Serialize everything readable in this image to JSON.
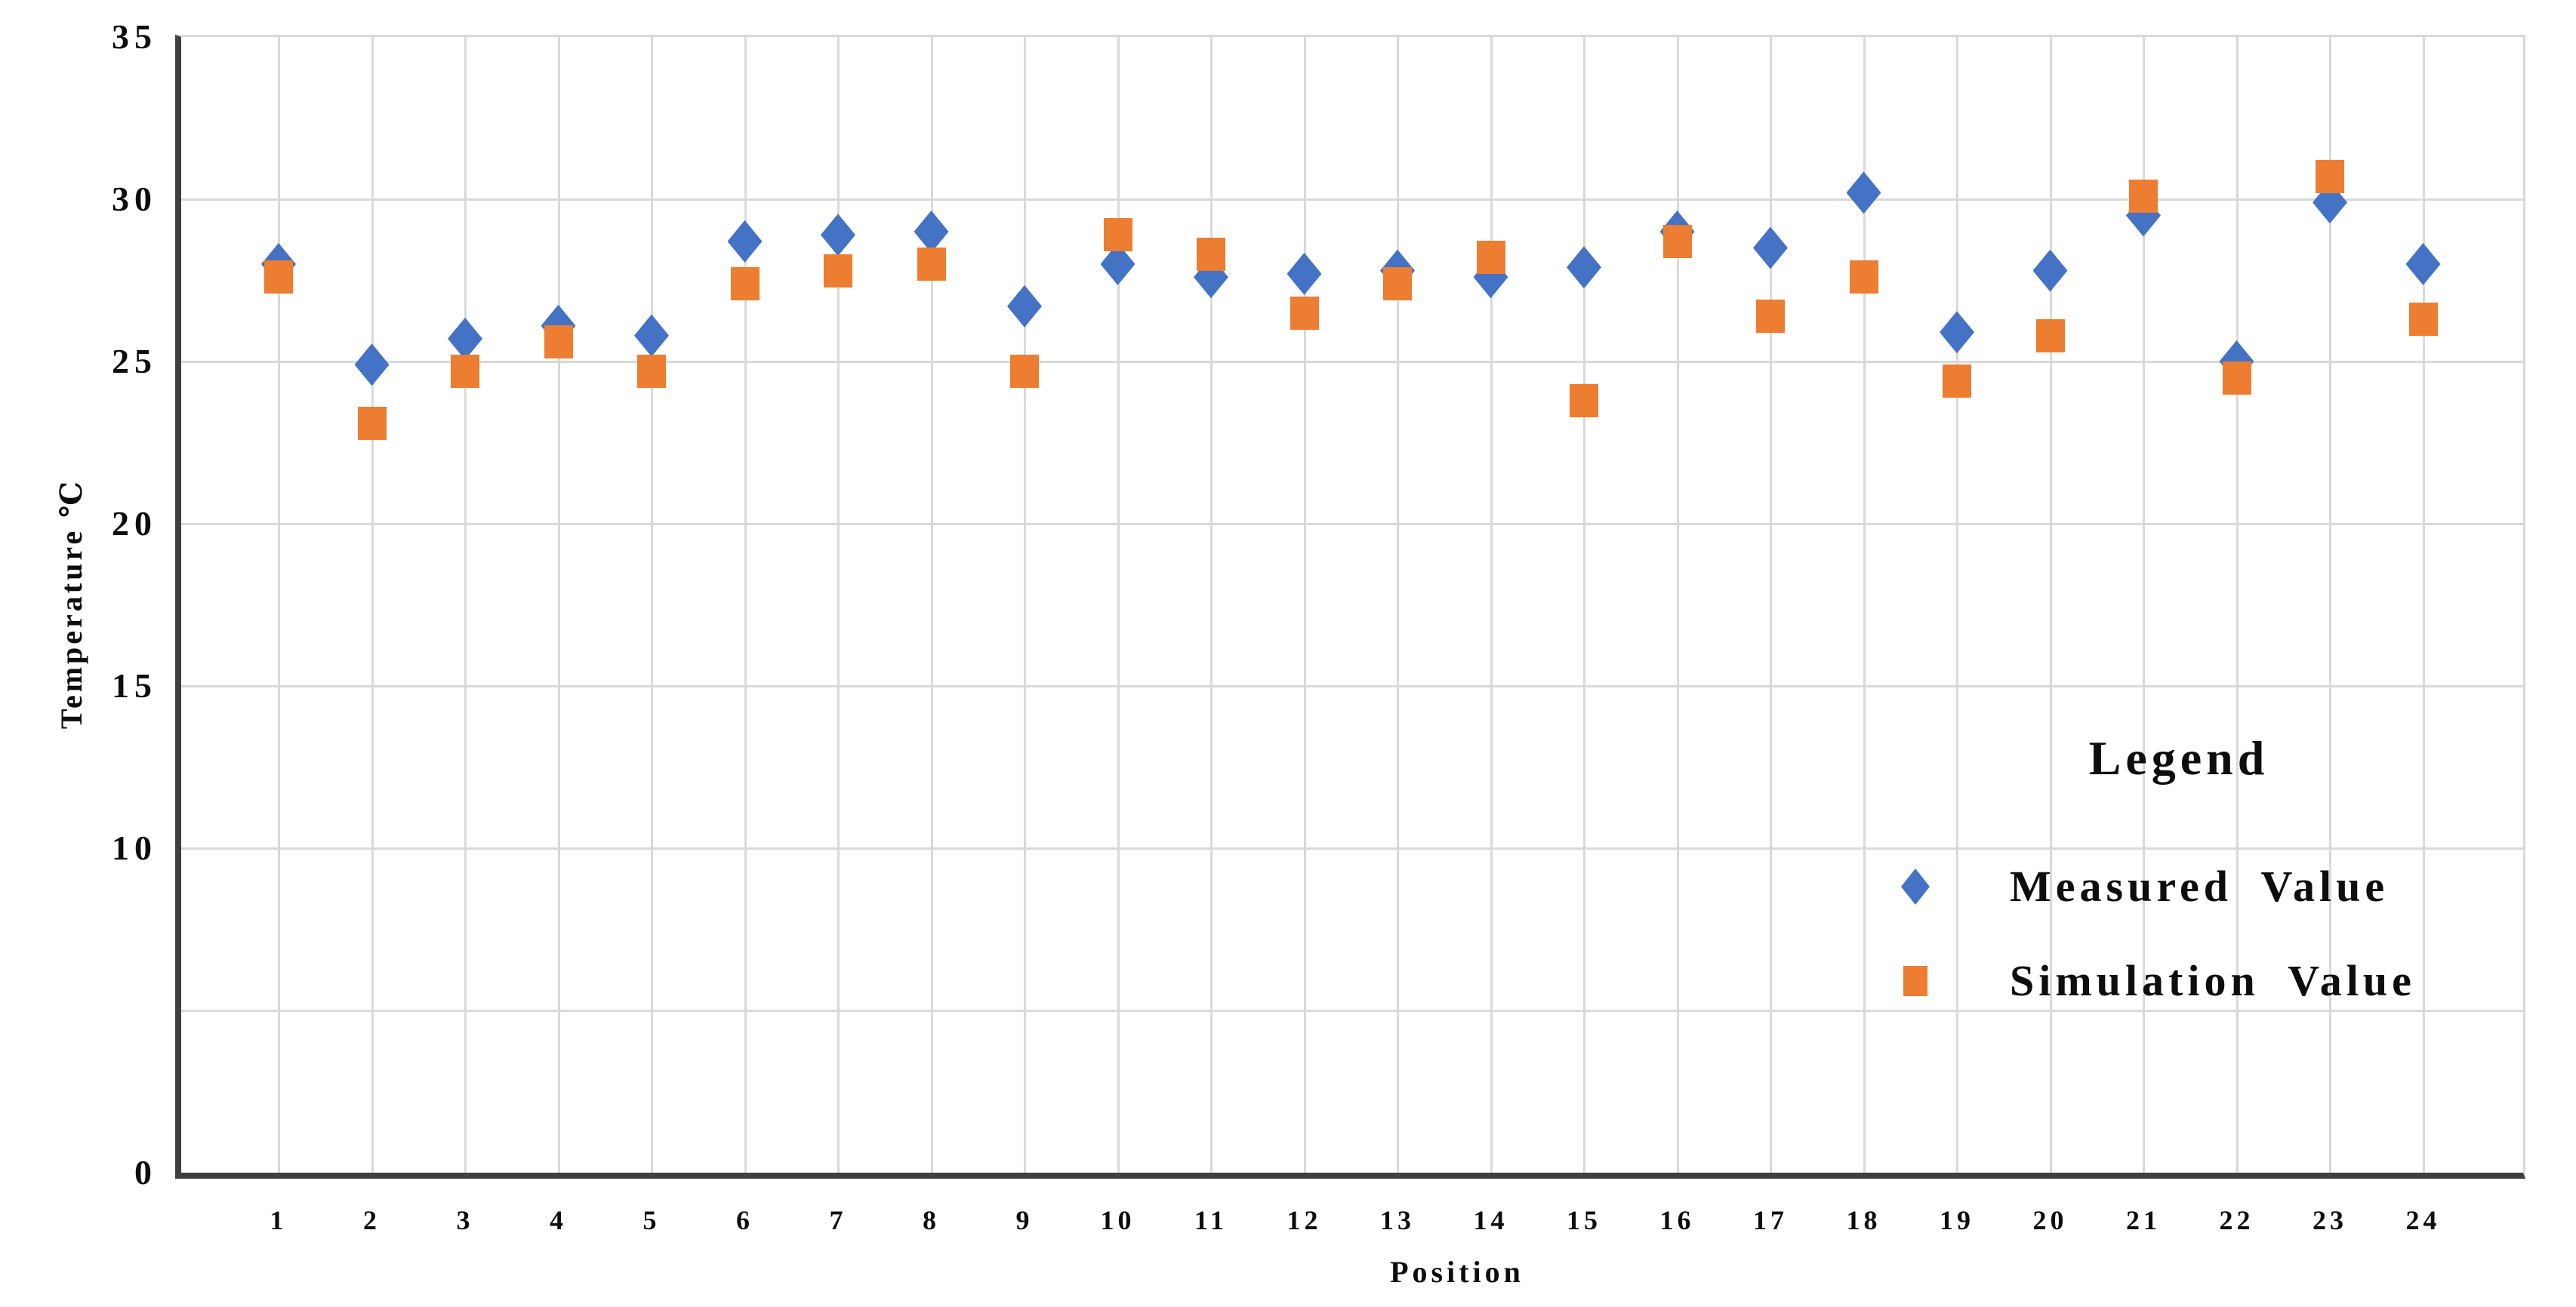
{
  "chart_data": {
    "type": "scatter",
    "title": "",
    "xlabel": "Position",
    "ylabel": "Temperature ℃",
    "x": [
      1,
      2,
      3,
      4,
      5,
      6,
      7,
      8,
      9,
      10,
      11,
      12,
      13,
      14,
      15,
      16,
      17,
      18,
      19,
      20,
      21,
      22,
      23,
      24
    ],
    "series": [
      {
        "name": "Measured Value",
        "marker": "diamond",
        "color": "#4472C4",
        "values": [
          28.0,
          24.9,
          25.7,
          26.1,
          25.8,
          28.7,
          28.9,
          29.0,
          26.7,
          28.0,
          27.6,
          27.7,
          27.8,
          27.6,
          27.9,
          29.0,
          28.5,
          30.2,
          25.9,
          27.8,
          29.5,
          25.0,
          29.9,
          28.0
        ]
      },
      {
        "name": "Simulation Value",
        "marker": "square",
        "color": "#ED7D31",
        "values": [
          27.6,
          23.1,
          24.7,
          25.6,
          24.7,
          27.4,
          27.8,
          28.0,
          24.7,
          28.9,
          28.3,
          26.5,
          27.4,
          28.2,
          23.8,
          28.7,
          26.4,
          27.6,
          24.4,
          25.8,
          30.1,
          24.5,
          30.7,
          26.3
        ]
      }
    ],
    "ylim": [
      0,
      35
    ],
    "yticks_shown": [
      35,
      30,
      25,
      20,
      15,
      10,
      0
    ],
    "gridline_step": 5,
    "grid": "on",
    "legend": {
      "title": "Legend",
      "position": "center-right"
    }
  },
  "colors": {
    "measured": "#4472C4",
    "simulation": "#ED7D31",
    "gridline": "#D9D9D9",
    "axis": "#3F3F3F",
    "text": "#000000"
  }
}
